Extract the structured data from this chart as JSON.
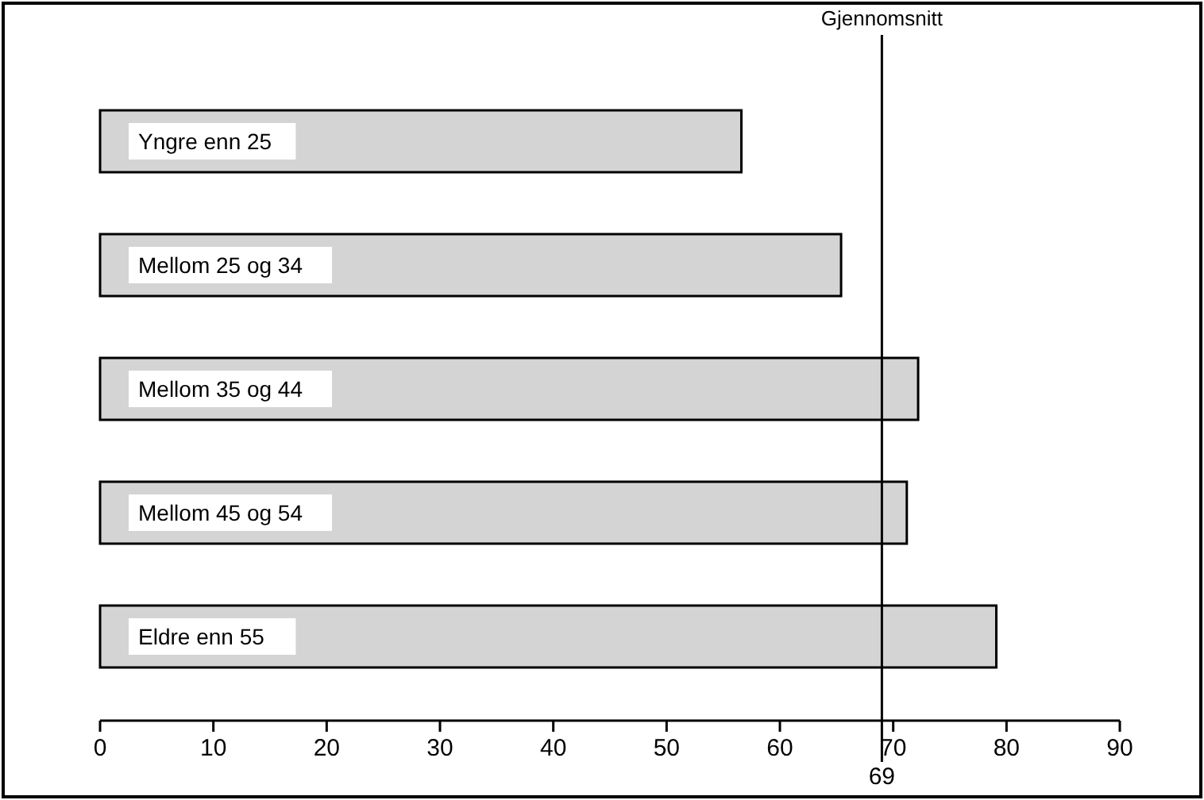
{
  "chart_data": {
    "type": "bar",
    "orientation": "horizontal",
    "categories": [
      "Yngre enn 25",
      "Mellom 25 og 34",
      "Mellom 35 og 44",
      "Mellom 45 og 54",
      "Eldre enn 55"
    ],
    "values": [
      56.6,
      65.4,
      72.2,
      71.2,
      79.1
    ],
    "color": "#d4d4d4",
    "xlim": [
      0,
      90
    ],
    "xticks": [
      0,
      10,
      20,
      30,
      40,
      50,
      60,
      70,
      80,
      90
    ],
    "grid": false,
    "annotations": [
      "69"
    ],
    "ref_lines": [
      {
        "axis": "x",
        "value": 69,
        "label": "Gjennomsnitt",
        "color": "#000000"
      }
    ]
  }
}
